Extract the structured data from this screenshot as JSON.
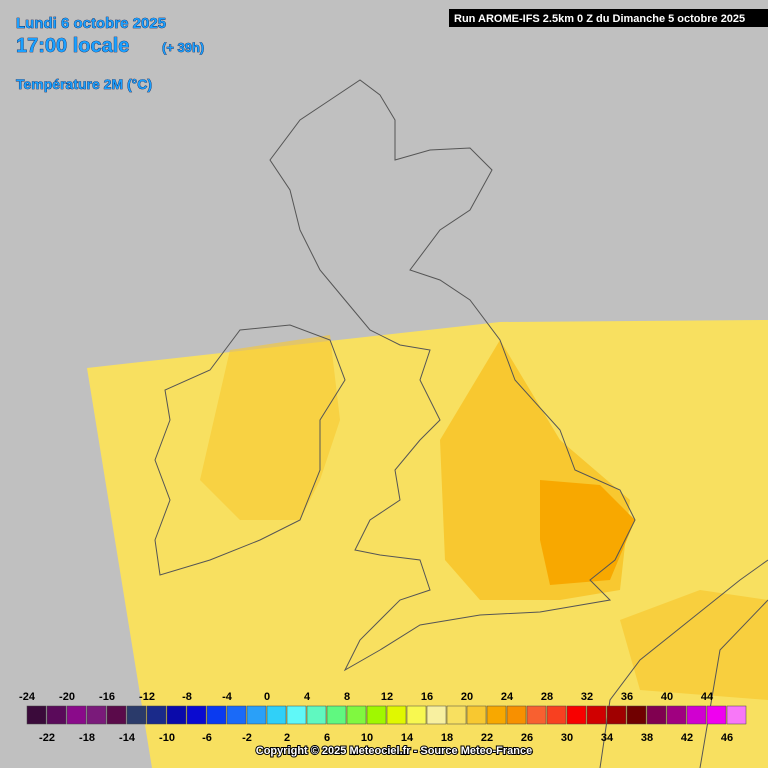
{
  "header": {
    "date": "Lundi 6 octobre 2025",
    "time": "17:00 locale",
    "lead": "(+ 39h)",
    "parameter": "Température 2M (°C)",
    "run": "Run AROME-IFS 2.5km 0 Z du Dimanche 5 octobre 2025"
  },
  "legend": {
    "values": [
      -24,
      -22,
      -20,
      -18,
      -16,
      -14,
      -12,
      -10,
      -8,
      -6,
      -4,
      -2,
      0,
      2,
      4,
      6,
      8,
      10,
      12,
      14,
      16,
      18,
      20,
      22,
      24,
      26,
      28,
      30,
      32,
      34,
      36,
      38,
      40,
      42,
      44,
      46
    ],
    "colors": [
      "#3a0a3a",
      "#5a0a5a",
      "#8a0a8a",
      "#7a1a7a",
      "#5a0a4a",
      "#2a3a6a",
      "#1a2a8a",
      "#0a0aaa",
      "#0a0ad0",
      "#0a3af0",
      "#1a6af8",
      "#2aa0f8",
      "#30d0f8",
      "#60f8f8",
      "#60f8c0",
      "#60f880",
      "#80f840",
      "#a0f800",
      "#e0f800",
      "#f8f850",
      "#f8f0a0",
      "#f8e060",
      "#f8c830",
      "#f8a800",
      "#f89000",
      "#f86030",
      "#f84020",
      "#f80000",
      "#d00000",
      "#a00000",
      "#700000",
      "#800050",
      "#a00080",
      "#d000d0",
      "#f000f0",
      "#f878f8"
    ]
  },
  "footer": {
    "copyright": "Copyright © 2025 Meteociel.fr - Source Meteo-France"
  }
}
